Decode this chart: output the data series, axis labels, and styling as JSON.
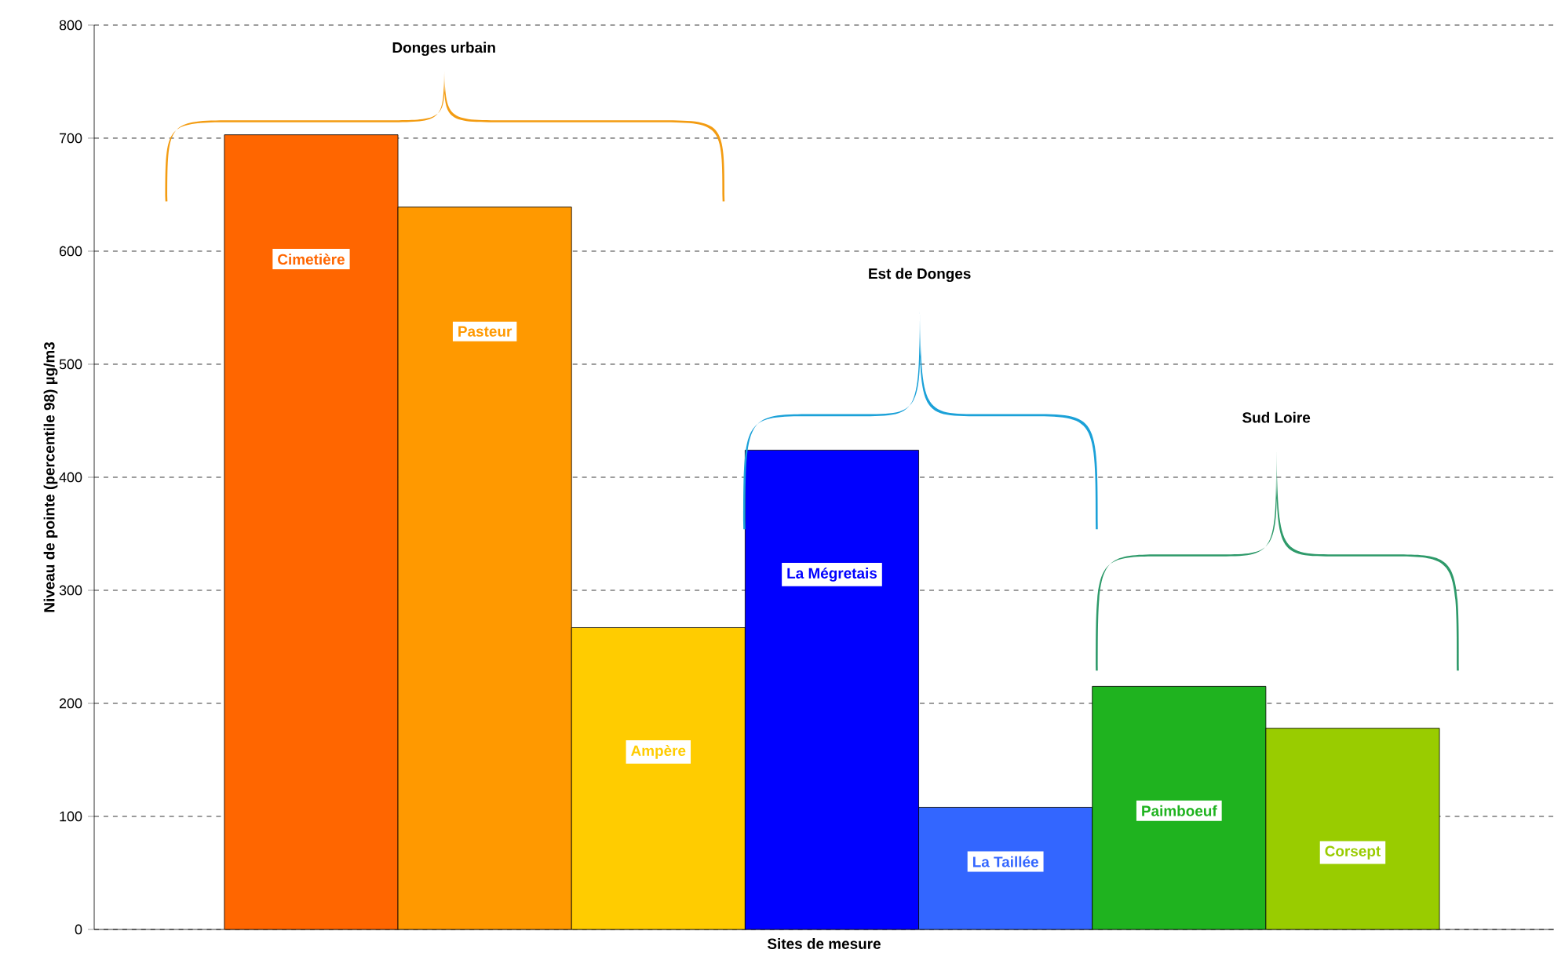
{
  "chart_data": {
    "type": "bar",
    "xlabel": "Sites de mesure",
    "ylabel": "Niveau de pointe (percentile 98) µg/m3",
    "categories": [
      "Cimetière",
      "Pasteur",
      "Ampère",
      "La Mégretais",
      "La Taillée",
      "Paimboeuf",
      "Corsept"
    ],
    "values": [
      703,
      639,
      267,
      424,
      108,
      215,
      178
    ],
    "colors": [
      "#ff6600",
      "#ff9900",
      "#ffcc00",
      "#0000ff",
      "#3366ff",
      "#1fb31f",
      "#99cc00"
    ],
    "ylim": [
      0,
      800
    ],
    "yticks": [
      0,
      100,
      200,
      300,
      400,
      500,
      600,
      700,
      800
    ],
    "grid": "y",
    "annotations": [
      "Donges urbain",
      "Est de Donges",
      "Sud Loire"
    ]
  }
}
